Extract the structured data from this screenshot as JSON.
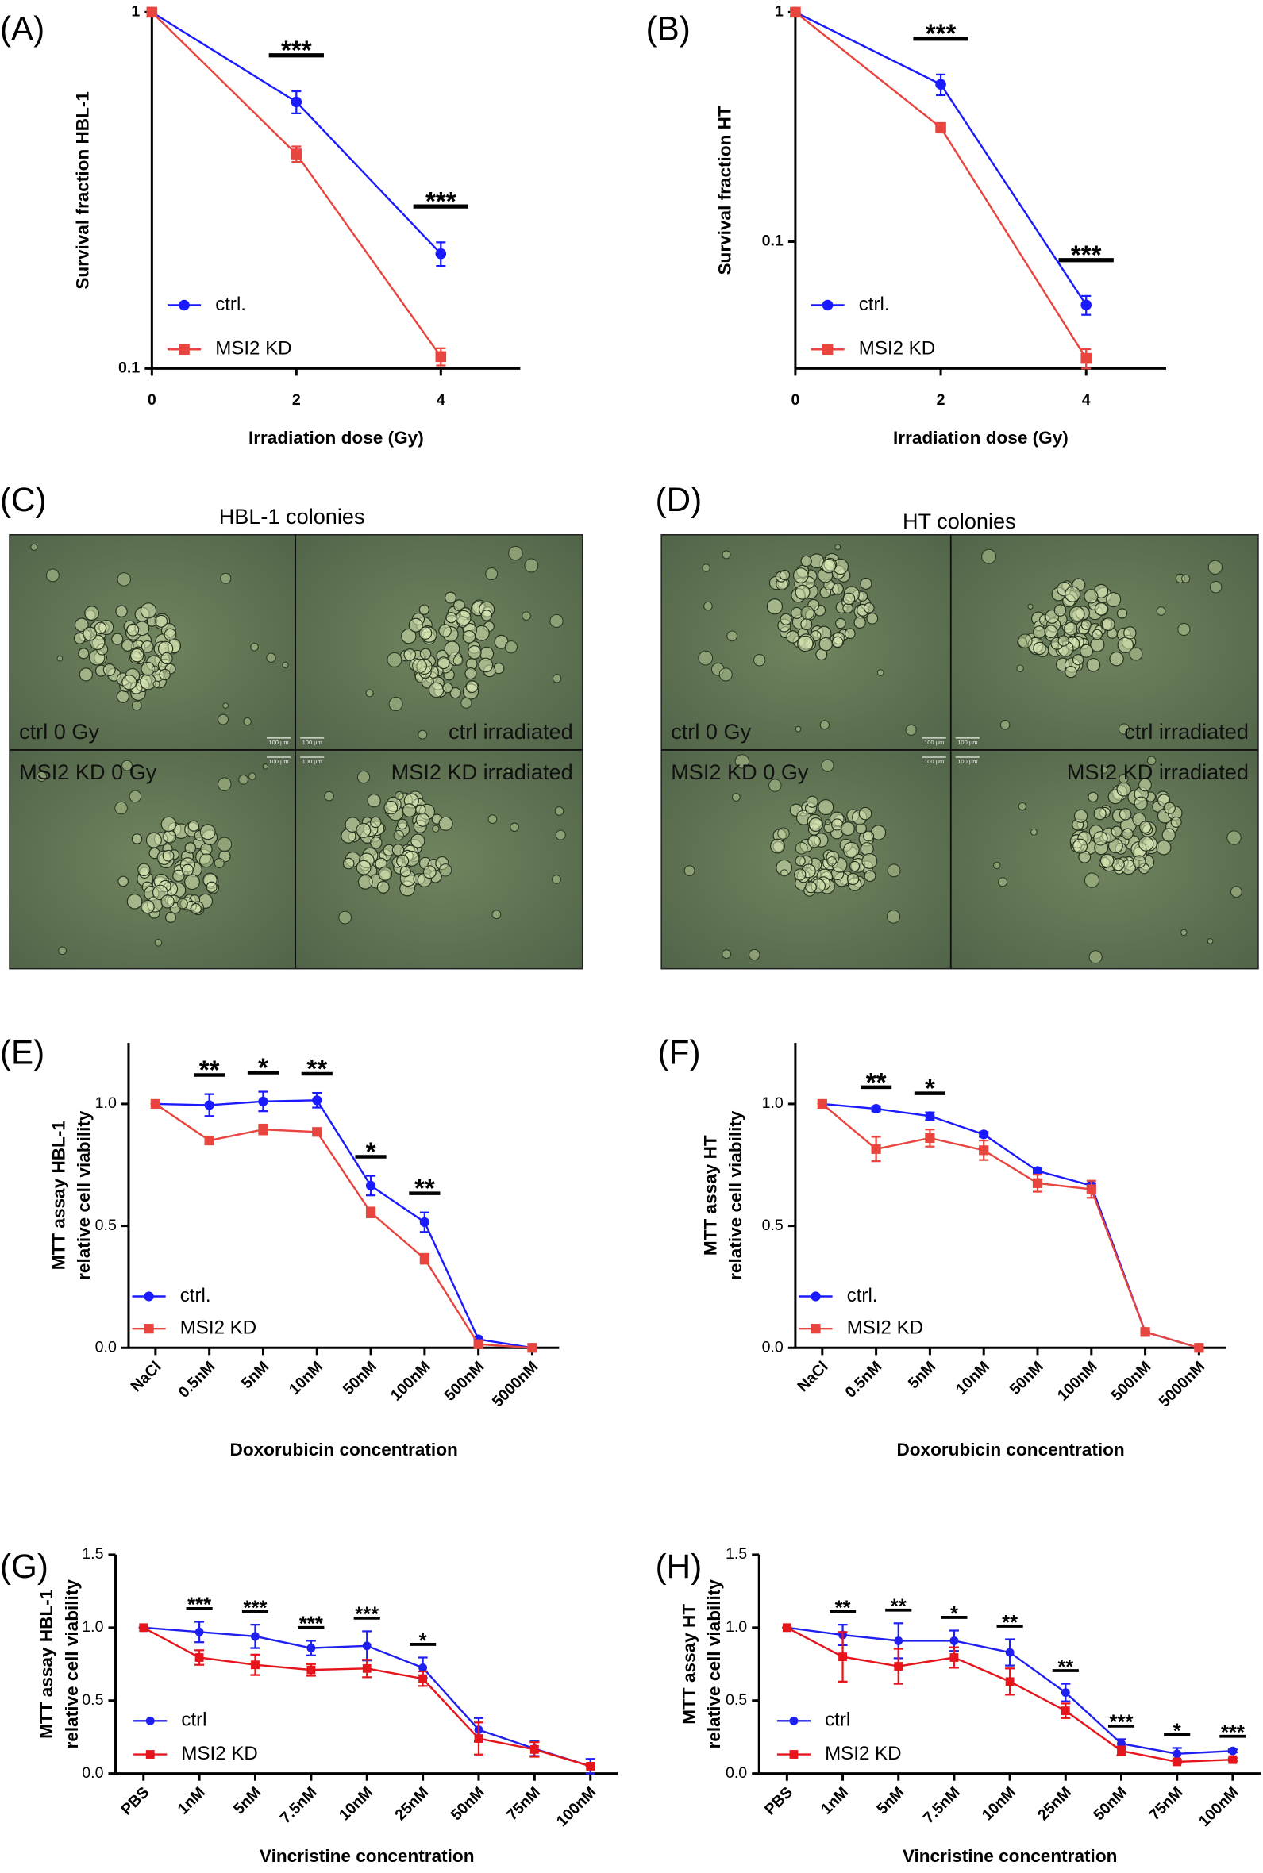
{
  "chart_data": [
    {
      "panel": "(A)",
      "type": "line",
      "xlabel": "Irradiation dose (Gy)",
      "ylabel": "Survival fraction HBL-1",
      "log_y": true,
      "x": [
        0,
        2,
        4
      ],
      "xlim": [
        0,
        5.1
      ],
      "xticks": [
        0,
        2,
        4
      ],
      "ylim": [
        0.1,
        1
      ],
      "yticks": [
        0.1,
        1
      ],
      "legend": "lower left",
      "series": [
        {
          "name": "ctrl.",
          "color": "#1a1aff",
          "marker": "circle",
          "values": [
            1,
            0.56,
            0.21
          ],
          "errors": [
            0,
            0.04,
            0.016
          ]
        },
        {
          "name": "MSI2 KD",
          "color": "#e8453f",
          "marker": "square",
          "values": [
            1,
            0.4,
            0.108
          ],
          "errors": [
            0,
            0.02,
            0.006
          ]
        }
      ],
      "significance": [
        null,
        "***",
        "***"
      ]
    },
    {
      "panel": "(B)",
      "type": "line",
      "xlabel": "Irradiation dose (Gy)",
      "ylabel": "Survival fraction HT",
      "log_y": true,
      "x": [
        0,
        2,
        4
      ],
      "xlim": [
        0,
        5.1
      ],
      "xticks": [
        0,
        2,
        4
      ],
      "ylim": [
        0.028,
        1
      ],
      "yticks": [
        0.1,
        1
      ],
      "legend": "lower left",
      "series": [
        {
          "name": "ctrl.",
          "color": "#1a1aff",
          "marker": "circle",
          "values": [
            1,
            0.485,
            0.053
          ],
          "errors": [
            0,
            0.05,
            0.005
          ]
        },
        {
          "name": "MSI2 KD",
          "color": "#e8453f",
          "marker": "square",
          "values": [
            1,
            0.314,
            0.031
          ],
          "errors": [
            0,
            0.015,
            0.003
          ]
        }
      ],
      "significance": [
        null,
        "***",
        "***"
      ]
    },
    {
      "panel": "(E)",
      "type": "line",
      "xlabel": "Doxorubicin concentration",
      "ylabel": [
        "MTT assay HBL-1",
        "relative cell viability"
      ],
      "categories": [
        "NaCl",
        "0.5nM",
        "5nM",
        "10nM",
        "50nM",
        "100nM",
        "500nM",
        "5000nM"
      ],
      "ylim": [
        0,
        1.25
      ],
      "yticks": [
        {
          "value": 0,
          "label": "0.0"
        },
        0.5,
        {
          "value": 1,
          "label": "1.0"
        }
      ],
      "legend": "lower left",
      "series": [
        {
          "name": "ctrl.",
          "color": "#1a1aff",
          "marker": "circle",
          "values": [
            1,
            0.995,
            1.01,
            1.015,
            0.665,
            0.515,
            0.035,
            0
          ],
          "errors": [
            0,
            0.045,
            0.04,
            0.03,
            0.04,
            0.04,
            0,
            0
          ]
        },
        {
          "name": "MSI2 KD",
          "color": "#e8453f",
          "marker": "square",
          "values": [
            1,
            0.85,
            0.895,
            0.885,
            0.555,
            0.365,
            0.015,
            0
          ],
          "errors": [
            0,
            0.01,
            0.02,
            0.015,
            0.02,
            0.02,
            0,
            0
          ]
        }
      ],
      "significance": [
        null,
        "**",
        "*",
        "**",
        "*",
        "**",
        null,
        null
      ]
    },
    {
      "panel": "(F)",
      "type": "line",
      "xlabel": "Doxorubicin concentration",
      "ylabel": [
        "MTT assay HT",
        "relative cell viability"
      ],
      "categories": [
        "NaCl",
        "0.5nM",
        "5nM",
        "10nM",
        "50nM",
        "100nM",
        "500nM",
        "5000nM"
      ],
      "ylim": [
        0,
        1.25
      ],
      "yticks": [
        {
          "value": 0,
          "label": "0.0"
        },
        0.5,
        {
          "value": 1,
          "label": "1.0"
        }
      ],
      "legend": "lower left",
      "series": [
        {
          "name": "ctrl.",
          "color": "#1a1aff",
          "marker": "circle",
          "values": [
            1,
            0.98,
            0.95,
            0.875,
            0.725,
            0.665,
            0.065,
            0
          ],
          "errors": [
            0,
            0.01,
            0.015,
            0.01,
            0.01,
            0.01,
            0,
            0
          ]
        },
        {
          "name": "MSI2 KD",
          "color": "#e8453f",
          "marker": "square",
          "values": [
            1,
            0.815,
            0.86,
            0.81,
            0.675,
            0.65,
            0.065,
            0
          ],
          "errors": [
            0,
            0.05,
            0.035,
            0.04,
            0.035,
            0.035,
            0,
            0
          ]
        }
      ],
      "significance": [
        null,
        "**",
        "*",
        null,
        null,
        null,
        null,
        null
      ]
    },
    {
      "panel": "(G)",
      "type": "line",
      "xlabel": "Vincristine concentration",
      "ylabel": [
        "MTT assay HBL-1",
        "relative cell viability"
      ],
      "categories": [
        "PBS",
        "1nM",
        "5nM",
        "7.5nM",
        "10nM",
        "25nM",
        "50nM",
        "75nM",
        "100nM"
      ],
      "ylim": [
        0,
        1.5
      ],
      "yticks": [
        {
          "value": 0,
          "label": "0.0"
        },
        0.5,
        {
          "value": 1,
          "label": "1.0"
        },
        1.5
      ],
      "legend": "lower left",
      "series": [
        {
          "name": "ctrl",
          "color": "#1f1ff0",
          "marker": "circle",
          "values": [
            1,
            0.97,
            0.94,
            0.86,
            0.875,
            0.725,
            0.3,
            0.17,
            0.05
          ],
          "errors": [
            0,
            0.07,
            0.08,
            0.05,
            0.1,
            0.07,
            0.08,
            0.05,
            0.05
          ]
        },
        {
          "name": "MSI2 KD",
          "color": "#e5151b",
          "marker": "square",
          "values": [
            1,
            0.795,
            0.745,
            0.71,
            0.72,
            0.65,
            0.24,
            0.165,
            0.05
          ],
          "errors": [
            0,
            0.05,
            0.07,
            0.04,
            0.06,
            0.05,
            0.11,
            0.05,
            0
          ]
        }
      ],
      "significance": [
        null,
        "***",
        "***",
        "***",
        "***",
        "*",
        null,
        null,
        null
      ]
    },
    {
      "panel": "(H)",
      "type": "line",
      "xlabel": "Vincristine concentration",
      "ylabel": [
        "MTT assay HT",
        "relative cell viability"
      ],
      "categories": [
        "PBS",
        "1nM",
        "5nM",
        "7.5nM",
        "10nM",
        "25nM",
        "50nM",
        "75nM",
        "100nM"
      ],
      "ylim": [
        0,
        1.5
      ],
      "yticks": [
        {
          "value": 0,
          "label": "0.0"
        },
        0.5,
        {
          "value": 1,
          "label": "1.0"
        },
        1.5
      ],
      "legend": "lower left",
      "series": [
        {
          "name": "ctrl",
          "color": "#1f1ff0",
          "marker": "circle",
          "values": [
            1,
            0.95,
            0.91,
            0.91,
            0.83,
            0.555,
            0.205,
            0.135,
            0.155
          ],
          "errors": [
            0,
            0.07,
            0.12,
            0.07,
            0.09,
            0.06,
            0.03,
            0.04,
            0.01
          ]
        },
        {
          "name": "MSI2 KD",
          "color": "#e5151b",
          "marker": "square",
          "values": [
            1,
            0.8,
            0.735,
            0.795,
            0.63,
            0.43,
            0.155,
            0.08,
            0.095
          ],
          "errors": [
            0,
            0.17,
            0.12,
            0.07,
            0.09,
            0.05,
            0.03,
            0.01,
            0.01
          ]
        }
      ],
      "significance": [
        null,
        "**",
        "**",
        "*",
        "**",
        "**",
        "***",
        "*",
        "***"
      ]
    }
  ],
  "micrographs": [
    {
      "panel": "(C)",
      "title": "HBL-1 colonies",
      "labels": [
        "ctrl 0 Gy",
        "ctrl irradiated",
        "MSI2 KD 0 Gy",
        "MSI2 KD irradiated"
      ],
      "scale_bar": "100 µm"
    },
    {
      "panel": "(D)",
      "title": "HT colonies",
      "labels": [
        "ctrl 0 Gy",
        "ctrl irradiated",
        "MSI2 KD 0 Gy",
        "MSI2 KD irradiated"
      ],
      "scale_bar": "100 µm"
    }
  ]
}
